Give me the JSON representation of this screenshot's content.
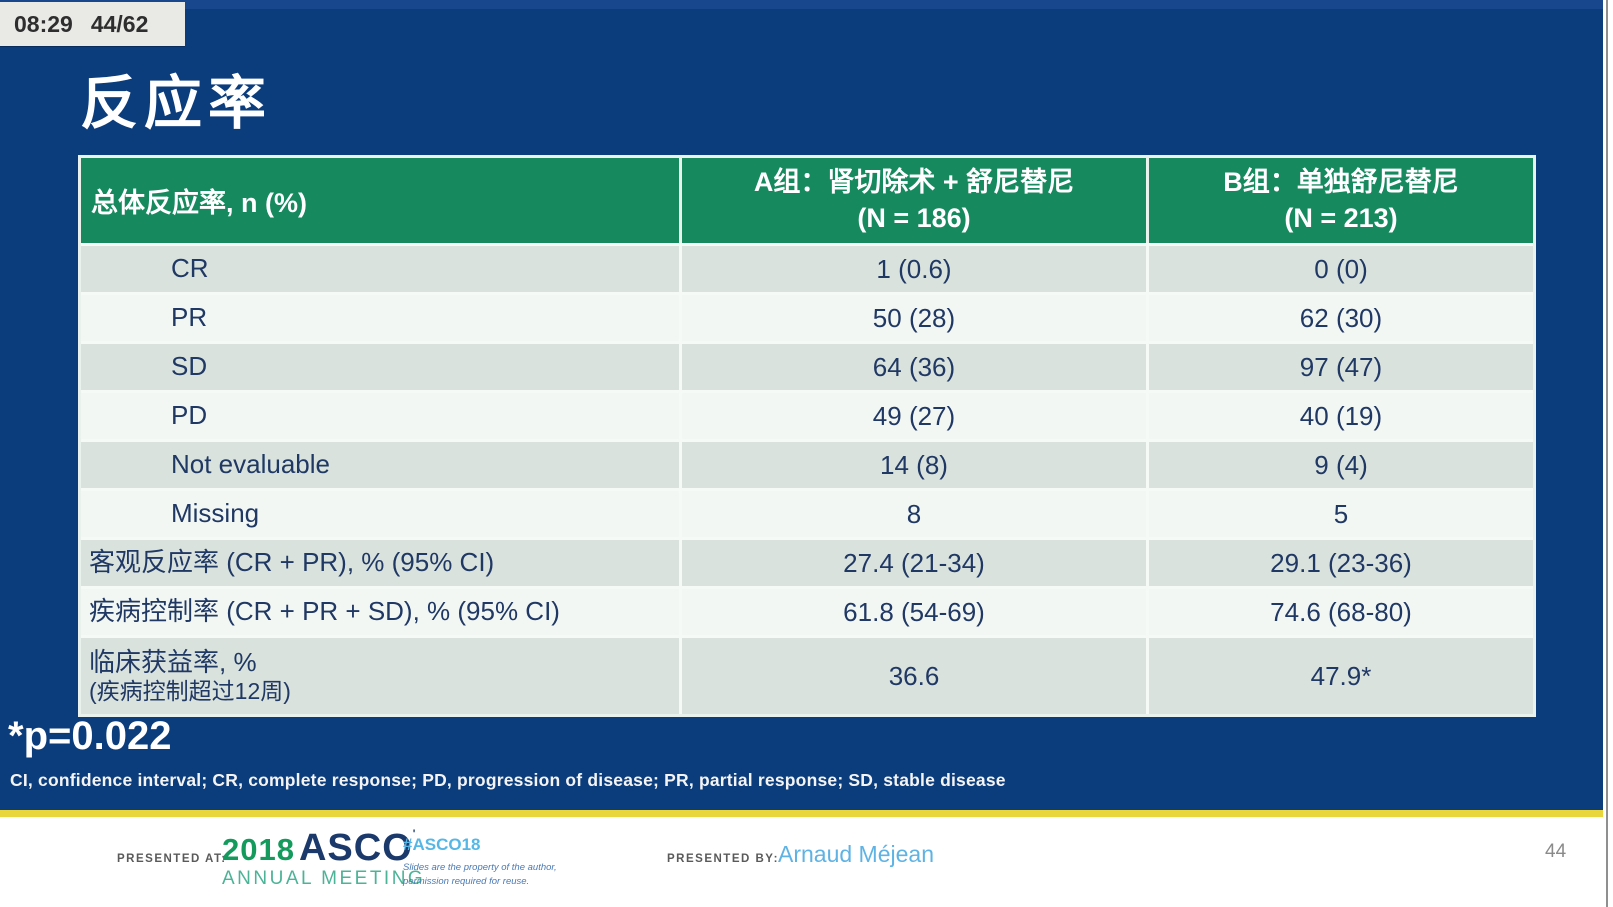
{
  "player": {
    "timestamp": "08:29",
    "slide_position": "44/62"
  },
  "slide": {
    "title": "反应率",
    "pvalue_note": "*p=0.022",
    "abbreviations": "CI, confidence interval; CR, complete response; PD, progression of disease; PR, partial response; SD, stable disease"
  },
  "table": {
    "headers": [
      "总体反应率, n (%)",
      "A组：肾切除术 + 舒尼替尼",
      "B组：单独舒尼替尼"
    ],
    "header_sub": [
      "",
      "(N = 186)",
      "(N = 213)"
    ],
    "rows": [
      {
        "label": "CR",
        "a": "1 (0.6)",
        "b": "0 (0)",
        "indent": true
      },
      {
        "label": "PR",
        "a": "50 (28)",
        "b": "62 (30)",
        "indent": true
      },
      {
        "label": "SD",
        "a": "64 (36)",
        "b": "97 (47)",
        "indent": true
      },
      {
        "label": "PD",
        "a": "49 (27)",
        "b": "40 (19)",
        "indent": true
      },
      {
        "label": "Not evaluable",
        "a": "14 (8)",
        "b": "9 (4)",
        "indent": true
      },
      {
        "label": "Missing",
        "a": "8",
        "b": "5",
        "indent": true
      },
      {
        "label": "客观反应率 (CR + PR), % (95% CI)",
        "a": "27.4 (21-34)",
        "b": "29.1 (23-36)",
        "indent": false
      },
      {
        "label": "疾病控制率 (CR + PR + SD), % (95% CI)",
        "a": "61.8 (54-69)",
        "b": "74.6 (68-80)",
        "indent": false
      },
      {
        "label": "临床获益率, %",
        "label2": "(疾病控制超过12周)",
        "a": "36.6",
        "b": "47.9*",
        "indent": false
      }
    ]
  },
  "footer": {
    "presented_at_label": "PRESENTED AT:",
    "logo_year": "2018",
    "logo_name": "ASCO",
    "logo_sub": "ANNUAL MEETING",
    "hashtag": "#ASCO18",
    "disclaimer_line1": "Slides are the property of the author,",
    "disclaimer_line2": "permission required for reuse.",
    "presented_by_label": "PRESENTED BY:",
    "presenter": "Arnaud Méjean",
    "page_number": "44"
  },
  "colors": {
    "bg_blue": "#0b3c7c",
    "header_green": "#17895f",
    "row_dark": "#d9e2dd",
    "row_light": "#f3f7f3",
    "cell_text": "#203864",
    "divider_yellow": "#e9d53c",
    "hashtag_blue": "#56b7e6",
    "logo_green": "#139a5c",
    "logo_navy": "#1b3a6b",
    "logo_teal": "#4cb396"
  }
}
